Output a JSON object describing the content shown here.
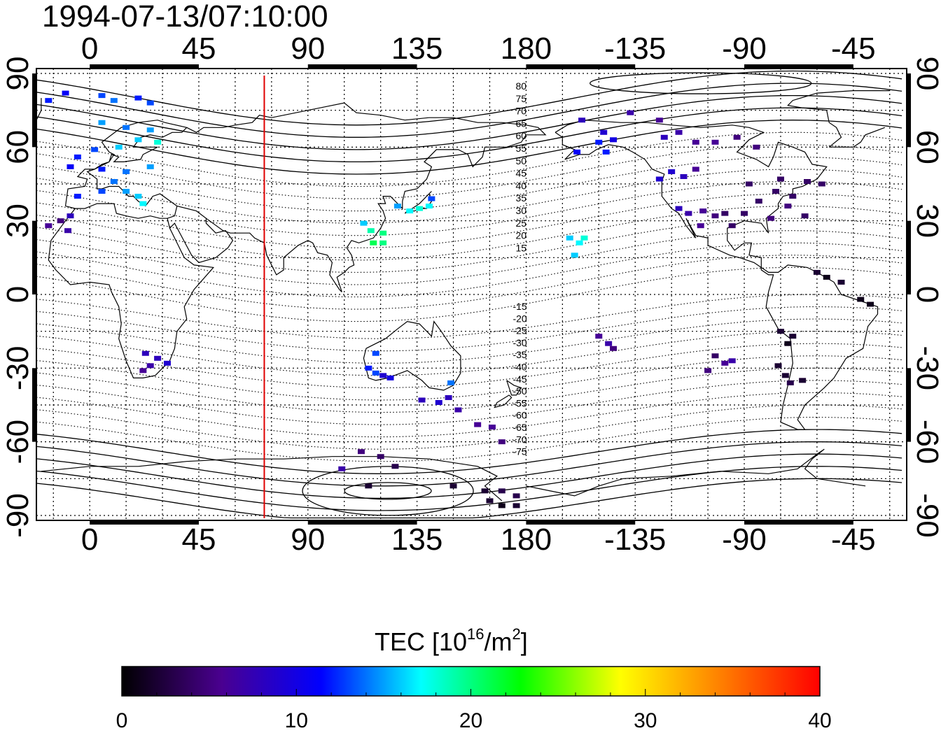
{
  "map": {
    "timestamp": "1994-07-13/07:10:00",
    "projection": "equirectangular",
    "lon_range": [
      -22,
      337
    ],
    "lat_range": [
      -92,
      92
    ],
    "x_ticks": [
      {
        "lon": 0,
        "label": "0"
      },
      {
        "lon": 45,
        "label": "45"
      },
      {
        "lon": 90,
        "label": "90"
      },
      {
        "lon": 135,
        "label": "135"
      },
      {
        "lon": 180,
        "label": "180"
      },
      {
        "lon": 225,
        "label": "-135"
      },
      {
        "lon": 270,
        "label": "-90"
      },
      {
        "lon": 315,
        "label": "-45"
      }
    ],
    "y_ticks": [
      {
        "lat": 90,
        "label": "90"
      },
      {
        "lat": 60,
        "label": "60"
      },
      {
        "lat": 30,
        "label": "30"
      },
      {
        "lat": 0,
        "label": "0"
      },
      {
        "lat": -30,
        "label": "-30"
      },
      {
        "lat": -60,
        "label": "-60"
      },
      {
        "lat": -90,
        "label": "-90"
      }
    ],
    "grid": "dotted, every 15 degrees",
    "terminator_lon": 72,
    "terminator_color": "#e00000",
    "contour_labels": [
      "80",
      "75",
      "70",
      "65",
      "60",
      "55",
      "50",
      "45",
      "40",
      "35",
      "30",
      "25",
      "20",
      "15",
      "-15",
      "-20",
      "-25",
      "-30",
      "-35",
      "-40",
      "-45",
      "-50",
      "-55",
      "-60",
      "-65",
      "-70",
      "-75"
    ]
  },
  "chart_data": {
    "type": "heatmap",
    "title": "1994-07-13/07:10:00",
    "value_name": "TEC",
    "units": "10^16/m^2",
    "colorscale_range": [
      0,
      40
    ],
    "points": [
      {
        "lon": -17,
        "lat": 79,
        "tec": 12
      },
      {
        "lon": -10,
        "lat": 82,
        "tec": 11
      },
      {
        "lon": 5,
        "lat": 81,
        "tec": 13
      },
      {
        "lon": 20,
        "lat": 80,
        "tec": 12
      },
      {
        "lon": 25,
        "lat": 78,
        "tec": 13
      },
      {
        "lon": 10,
        "lat": 79,
        "tec": 14
      },
      {
        "lon": 5,
        "lat": 70,
        "tec": 15
      },
      {
        "lon": 15,
        "lat": 68,
        "tec": 14
      },
      {
        "lon": 25,
        "lat": 67,
        "tec": 15
      },
      {
        "lon": 20,
        "lat": 63,
        "tec": 16
      },
      {
        "lon": 28,
        "lat": 62,
        "tec": 18
      },
      {
        "lon": 12,
        "lat": 60,
        "tec": 16
      },
      {
        "lon": 2,
        "lat": 59,
        "tec": 13
      },
      {
        "lon": -5,
        "lat": 56,
        "tec": 12
      },
      {
        "lon": -8,
        "lat": 52,
        "tec": 11
      },
      {
        "lon": 5,
        "lat": 51,
        "tec": 12
      },
      {
        "lon": 15,
        "lat": 50,
        "tec": 14
      },
      {
        "lon": 25,
        "lat": 52,
        "tec": 15
      },
      {
        "lon": 10,
        "lat": 46,
        "tec": 14
      },
      {
        "lon": 15,
        "lat": 42,
        "tec": 15
      },
      {
        "lon": 20,
        "lat": 40,
        "tec": 16
      },
      {
        "lon": 22,
        "lat": 37,
        "tec": 17
      },
      {
        "lon": 5,
        "lat": 42,
        "tec": 13
      },
      {
        "lon": -5,
        "lat": 40,
        "tec": 12
      },
      {
        "lon": -17,
        "lat": 28,
        "tec": 6
      },
      {
        "lon": -12,
        "lat": 30,
        "tec": 5
      },
      {
        "lon": -9,
        "lat": 26,
        "tec": 7
      },
      {
        "lon": -8,
        "lat": 32,
        "tec": 8
      },
      {
        "lon": 22,
        "lat": -31,
        "tec": 6
      },
      {
        "lon": 25,
        "lat": -29,
        "tec": 7
      },
      {
        "lon": 28,
        "lat": -26,
        "tec": 8
      },
      {
        "lon": 32,
        "lat": -28,
        "tec": 9
      },
      {
        "lon": 23,
        "lat": -24,
        "tec": 8
      },
      {
        "lon": 113,
        "lat": 29,
        "tec": 16
      },
      {
        "lon": 116,
        "lat": 26,
        "tec": 19
      },
      {
        "lon": 121,
        "lat": 25,
        "tec": 20
      },
      {
        "lon": 117,
        "lat": 21,
        "tec": 21
      },
      {
        "lon": 121,
        "lat": 21,
        "tec": 20
      },
      {
        "lon": 127,
        "lat": 36,
        "tec": 15
      },
      {
        "lon": 132,
        "lat": 34,
        "tec": 17
      },
      {
        "lon": 136,
        "lat": 35,
        "tec": 18
      },
      {
        "lon": 140,
        "lat": 36,
        "tec": 17
      },
      {
        "lon": 141,
        "lat": 39,
        "tec": 13
      },
      {
        "lon": 115,
        "lat": -30,
        "tec": 12
      },
      {
        "lon": 118,
        "lat": -32,
        "tec": 13
      },
      {
        "lon": 121,
        "lat": -33,
        "tec": 9
      },
      {
        "lon": 124,
        "lat": -34,
        "tec": 10
      },
      {
        "lon": 118,
        "lat": -24,
        "tec": 13
      },
      {
        "lon": 137,
        "lat": -43,
        "tec": 8
      },
      {
        "lon": 144,
        "lat": -44,
        "tec": 9
      },
      {
        "lon": 148,
        "lat": -42,
        "tec": 8
      },
      {
        "lon": 149,
        "lat": -36,
        "tec": 14
      },
      {
        "lon": 152,
        "lat": -47,
        "tec": 7
      },
      {
        "lon": 160,
        "lat": -53,
        "tec": 6
      },
      {
        "lon": 166,
        "lat": -54,
        "tec": 6
      },
      {
        "lon": 170,
        "lat": -60,
        "tec": 5
      },
      {
        "lon": 104,
        "lat": -71,
        "tec": 7
      },
      {
        "lon": 112,
        "lat": -64,
        "tec": 5
      },
      {
        "lon": 120,
        "lat": -66,
        "tec": 4
      },
      {
        "lon": 126,
        "lat": -70,
        "tec": 3
      },
      {
        "lon": 115,
        "lat": -78,
        "tec": 2
      },
      {
        "lon": 150,
        "lat": -78,
        "tec": 2
      },
      {
        "lon": 163,
        "lat": -80,
        "tec": 2
      },
      {
        "lon": 170,
        "lat": -80,
        "tec": 3
      },
      {
        "lon": 176,
        "lat": -82,
        "tec": 3
      },
      {
        "lon": 170,
        "lat": -86,
        "tec": 1
      },
      {
        "lon": 176,
        "lat": -86,
        "tec": 2
      },
      {
        "lon": 165,
        "lat": -84,
        "tec": 2
      },
      {
        "lon": 203,
        "lat": 71,
        "tec": 8
      },
      {
        "lon": 212,
        "lat": 66,
        "tec": 9
      },
      {
        "lon": 216,
        "lat": 63,
        "tec": 10
      },
      {
        "lon": 210,
        "lat": 62,
        "tec": 12
      },
      {
        "lon": 201,
        "lat": 58,
        "tec": 11
      },
      {
        "lon": 213,
        "lat": 58,
        "tec": 12
      },
      {
        "lon": 223,
        "lat": 74,
        "tec": 7
      },
      {
        "lon": 235,
        "lat": 71,
        "tec": 6
      },
      {
        "lon": 237,
        "lat": 64,
        "tec": 8
      },
      {
        "lon": 243,
        "lat": 66,
        "tec": 7
      },
      {
        "lon": 250,
        "lat": 62,
        "tec": 6
      },
      {
        "lon": 258,
        "lat": 62,
        "tec": 6
      },
      {
        "lon": 267,
        "lat": 64,
        "tec": 5
      },
      {
        "lon": 275,
        "lat": 60,
        "tec": 5
      },
      {
        "lon": 240,
        "lat": 50,
        "tec": 9
      },
      {
        "lon": 235,
        "lat": 47,
        "tec": 9
      },
      {
        "lon": 245,
        "lat": 48,
        "tec": 8
      },
      {
        "lon": 250,
        "lat": 51,
        "tec": 6
      },
      {
        "lon": 243,
        "lat": 35,
        "tec": 8
      },
      {
        "lon": 247,
        "lat": 33,
        "tec": 7
      },
      {
        "lon": 253,
        "lat": 34,
        "tec": 6
      },
      {
        "lon": 258,
        "lat": 32,
        "tec": 5
      },
      {
        "lon": 252,
        "lat": 28,
        "tec": 6
      },
      {
        "lon": 262,
        "lat": 33,
        "tec": 4
      },
      {
        "lon": 265,
        "lat": 28,
        "tec": 4
      },
      {
        "lon": 270,
        "lat": 33,
        "tec": 4
      },
      {
        "lon": 276,
        "lat": 38,
        "tec": 4
      },
      {
        "lon": 283,
        "lat": 42,
        "tec": 4
      },
      {
        "lon": 290,
        "lat": 40,
        "tec": 4
      },
      {
        "lon": 296,
        "lat": 46,
        "tec": 4
      },
      {
        "lon": 302,
        "lat": 45,
        "tec": 4
      },
      {
        "lon": 288,
        "lat": 36,
        "tec": 5
      },
      {
        "lon": 281,
        "lat": 31,
        "tec": 5
      },
      {
        "lon": 272,
        "lat": 45,
        "tec": 4
      },
      {
        "lon": 285,
        "lat": 47,
        "tec": 4
      },
      {
        "lon": 295,
        "lat": 32,
        "tec": 4
      },
      {
        "lon": 198,
        "lat": 23,
        "tec": 16
      },
      {
        "lon": 202,
        "lat": 21,
        "tec": 17
      },
      {
        "lon": 204,
        "lat": 23,
        "tec": 18
      },
      {
        "lon": 200,
        "lat": 16,
        "tec": 16
      },
      {
        "lon": 210,
        "lat": -17,
        "tec": 6
      },
      {
        "lon": 214,
        "lat": -20,
        "tec": 7
      },
      {
        "lon": 216,
        "lat": -22,
        "tec": 5
      },
      {
        "lon": 255,
        "lat": -31,
        "tec": 5
      },
      {
        "lon": 262,
        "lat": -28,
        "tec": 6
      },
      {
        "lon": 265,
        "lat": -27,
        "tec": 7
      },
      {
        "lon": 258,
        "lat": -25,
        "tec": 4
      },
      {
        "lon": 300,
        "lat": 9,
        "tec": 2
      },
      {
        "lon": 304,
        "lat": 7,
        "tec": 1
      },
      {
        "lon": 310,
        "lat": 5,
        "tec": 2
      },
      {
        "lon": 318,
        "lat": -2,
        "tec": 1
      },
      {
        "lon": 322,
        "lat": -4,
        "tec": 1
      },
      {
        "lon": 285,
        "lat": -15,
        "tec": 2
      },
      {
        "lon": 288,
        "lat": -20,
        "tec": 1
      },
      {
        "lon": 290,
        "lat": -17,
        "tec": 2
      },
      {
        "lon": 287,
        "lat": -33,
        "tec": 2
      },
      {
        "lon": 289,
        "lat": -36,
        "tec": 3
      },
      {
        "lon": 294,
        "lat": -35,
        "tec": 2
      },
      {
        "lon": 284,
        "lat": -29,
        "tec": 2
      }
    ]
  },
  "colorbar": {
    "label_prefix": "TEC  [10",
    "label_sup1": "16",
    "label_mid": "/m",
    "label_sup2": "2",
    "label_suffix": "]",
    "ticks": [
      {
        "value": 0,
        "label": "0"
      },
      {
        "value": 10,
        "label": "10"
      },
      {
        "value": 20,
        "label": "20"
      },
      {
        "value": 30,
        "label": "30"
      },
      {
        "value": 40,
        "label": "40"
      }
    ],
    "colors": [
      "#000000",
      "#4a0090",
      "#0000ff",
      "#00ffff",
      "#00ff00",
      "#ffff00",
      "#ff8000",
      "#ff0000"
    ]
  }
}
